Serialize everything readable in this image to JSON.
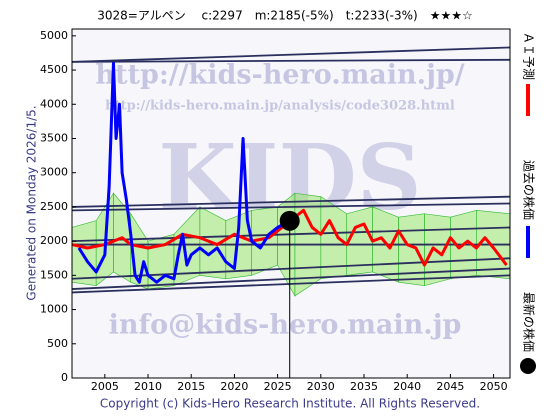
{
  "chart_data": {
    "type": "line",
    "title": "3028=アルペン　 c:2297　m:2185(-5%)　t:2233(-3%)　★★★☆",
    "y_label": "Generated on Monday 2026/1/5.",
    "footer": "Copyright (c) Kids-Hero Research Institute. All Rights Reserved.",
    "watermarks": [
      "http://kids-hero.main.jp/",
      "http://kids-hero.main.jp/analysis/code3028.html",
      "KIDS",
      "info@kids-hero.main.jp"
    ],
    "xlim": [
      2001.2,
      2051.9
    ],
    "ylim": [
      0,
      5100
    ],
    "xticks": [
      2005,
      2010,
      2015,
      2020,
      2025,
      2030,
      2035,
      2040,
      2045,
      2050
    ],
    "yticks": [
      0,
      500,
      1000,
      1500,
      2000,
      2500,
      3000,
      3500,
      4000,
      4500,
      5000
    ],
    "grid": false,
    "band": {
      "color": "#9be86a",
      "x": [
        2001.2,
        2004,
        2006,
        2008,
        2010,
        2013,
        2016,
        2019,
        2022,
        2025,
        2027,
        2030,
        2033,
        2036,
        2039,
        2042,
        2045,
        2048,
        2051.9
      ],
      "lower": [
        1400,
        1350,
        1550,
        1400,
        1300,
        1350,
        1500,
        1450,
        1500,
        1650,
        1200,
        1450,
        1500,
        1550,
        1400,
        1350,
        1450,
        1500,
        1450
      ],
      "upper": [
        2200,
        2300,
        2700,
        2400,
        2000,
        2100,
        2500,
        2300,
        2450,
        2500,
        2700,
        2650,
        2400,
        2500,
        2350,
        2400,
        2350,
        2450,
        2400
      ]
    },
    "trend_lines": [
      {
        "color": "#2b2f5e",
        "x": [
          2001.2,
          2051.9
        ],
        "values": [
          4620,
          4830
        ]
      },
      {
        "color": "#2b2f5e",
        "x": [
          2001.2,
          2051.9
        ],
        "values": [
          4620,
          4650
        ]
      },
      {
        "color": "#2b2f5e",
        "x": [
          2001.2,
          2051.9
        ],
        "values": [
          2500,
          2650
        ]
      },
      {
        "color": "#2b2f5e",
        "x": [
          2001.2,
          2051.9
        ],
        "values": [
          2450,
          2550
        ]
      },
      {
        "color": "#2b2f5e",
        "x": [
          2001.2,
          2051.9
        ],
        "values": [
          2000,
          2200
        ]
      },
      {
        "color": "#2b2f5e",
        "x": [
          2001.2,
          2051.9
        ],
        "values": [
          1950,
          1950
        ]
      },
      {
        "color": "#2b2f5e",
        "x": [
          2001.2,
          2051.9
        ],
        "values": [
          1450,
          1750
        ]
      },
      {
        "color": "#2b2f5e",
        "x": [
          2001.2,
          2051.9
        ],
        "values": [
          1300,
          1600
        ]
      },
      {
        "color": "#2b2f5e",
        "x": [
          2001.2,
          2051.9
        ],
        "values": [
          1250,
          1500
        ]
      }
    ],
    "series": [
      {
        "name": "ＡＩ予測",
        "color": "#ff0000",
        "x": [
          2001.2,
          2003,
          2005,
          2007,
          2008,
          2010,
          2012,
          2014,
          2016,
          2018,
          2020,
          2022,
          2024,
          2026,
          2027,
          2028,
          2029,
          2030,
          2031,
          2032,
          2033,
          2034,
          2035,
          2036,
          2037,
          2038,
          2039,
          2040,
          2041,
          2042,
          2043,
          2044,
          2045,
          2046,
          2047,
          2048,
          2049,
          2050,
          2051.5
        ],
        "values": [
          1950,
          1900,
          1950,
          2050,
          1950,
          1900,
          1950,
          2100,
          2050,
          1950,
          2100,
          2000,
          2050,
          2250,
          2350,
          2450,
          2200,
          2100,
          2300,
          2050,
          1950,
          2200,
          2250,
          2000,
          2050,
          1900,
          2150,
          1950,
          1900,
          1650,
          1900,
          1800,
          2050,
          1900,
          2000,
          1900,
          2050,
          1900,
          1650
        ]
      },
      {
        "name": "過去の株価",
        "color": "#0000ff",
        "x": [
          2002,
          2003,
          2004,
          2005,
          2005.5,
          2006,
          2006.3,
          2006.7,
          2007,
          2007.5,
          2008,
          2008.5,
          2009,
          2009.5,
          2010,
          2011,
          2012,
          2013,
          2013.5,
          2014,
          2014.5,
          2015,
          2016,
          2017,
          2018,
          2019,
          2020,
          2020.5,
          2021,
          2021.5,
          2022,
          2023,
          2024,
          2025,
          2026.4
        ],
        "values": [
          1900,
          1700,
          1550,
          1800,
          2800,
          4600,
          3500,
          4000,
          3000,
          2600,
          2100,
          1500,
          1400,
          1700,
          1500,
          1400,
          1500,
          1450,
          1800,
          2100,
          1650,
          1800,
          1900,
          1800,
          1900,
          1700,
          1600,
          2200,
          3500,
          2300,
          2000,
          1900,
          2100,
          2200,
          2297
        ]
      },
      {
        "name": "最新の株価",
        "color": "#000000",
        "marker": "circle",
        "x": [
          2026.4
        ],
        "values": [
          2297
        ]
      }
    ]
  }
}
